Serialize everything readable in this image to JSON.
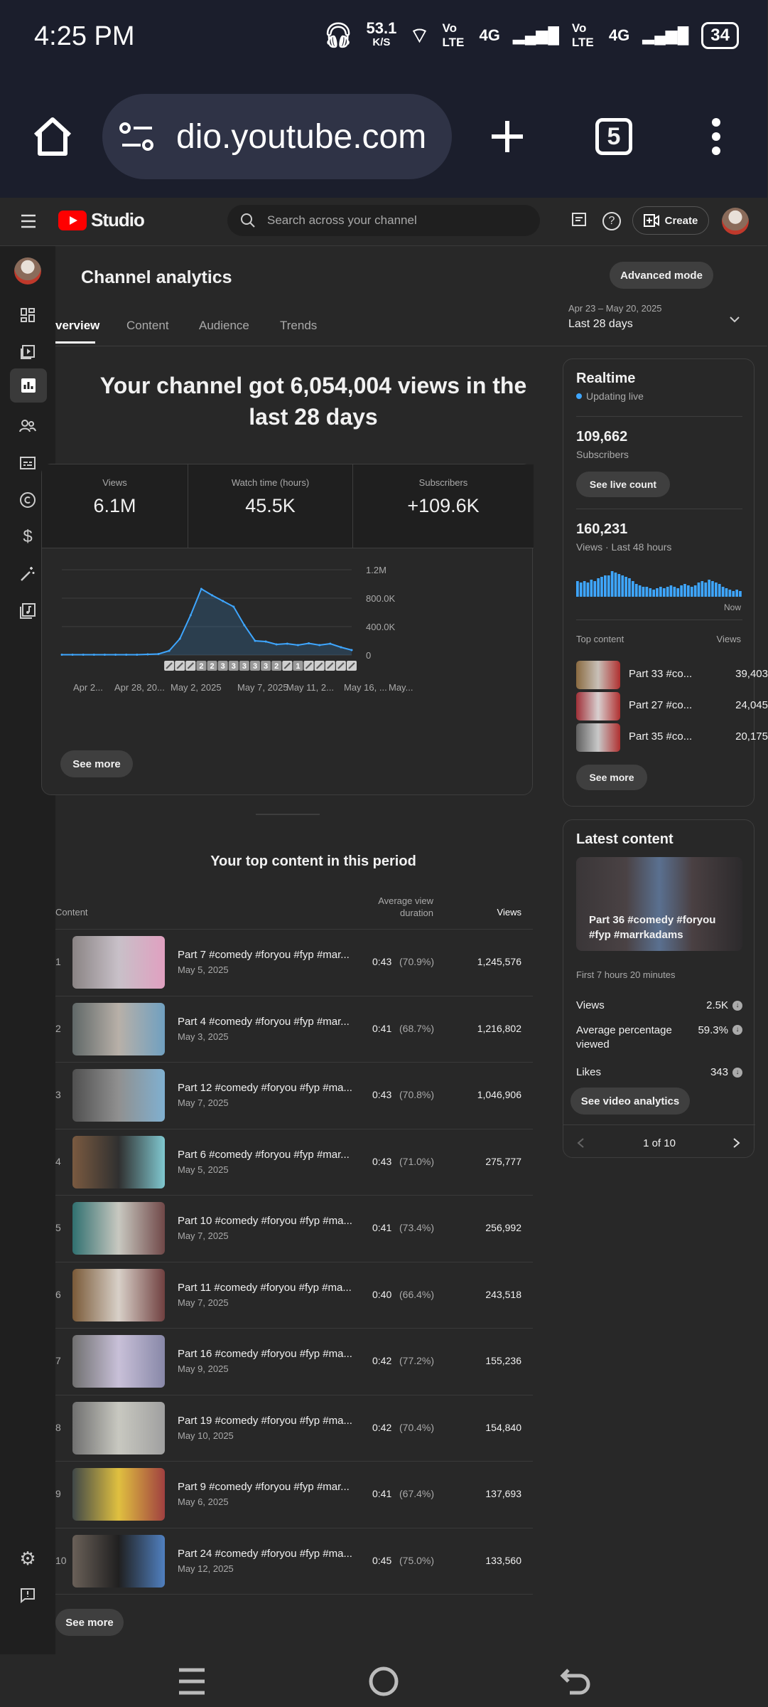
{
  "status_bar": {
    "time": "4:25 PM",
    "speed": "53.1",
    "speed_unit": "K/S",
    "net1": "Vo LTE",
    "net1_gen": "4G",
    "net2": "Vo LTE",
    "net2_gen": "4G",
    "battery": "34"
  },
  "browser": {
    "url": "dio.youtube.com",
    "tab_count": "5"
  },
  "header": {
    "logo": "Studio",
    "search_placeholder": "Search across your channel",
    "create_label": "Create"
  },
  "page": {
    "title": "Channel analytics",
    "advanced_mode": "Advanced mode",
    "date_range": "Apr 23 – May 20, 2025",
    "date_label": "Last 28 days",
    "tabs": [
      "verview",
      "Content",
      "Audience",
      "Trends"
    ]
  },
  "summary": {
    "headline": "Your channel got 6,054,004 views in the last 28 days",
    "metrics": [
      {
        "label": "Views",
        "value": "6.1M"
      },
      {
        "label": "Watch time (hours)",
        "value": "45.5K"
      },
      {
        "label": "Subscribers",
        "value": "+109.6K"
      }
    ],
    "see_more": "See more"
  },
  "chart_data": {
    "type": "area",
    "y_ticks": [
      "1.2M",
      "800.0K",
      "400.0K",
      "0"
    ],
    "ylim": [
      0,
      1200000
    ],
    "x_labels": [
      "Apr 2...",
      "Apr 28, 20...",
      "May 2, 2025",
      "May 7, 2025",
      "May 11, 2...",
      "May 16, ...",
      "May..."
    ],
    "x": [
      "Apr 23",
      "Apr 24",
      "Apr 25",
      "Apr 26",
      "Apr 27",
      "Apr 28",
      "Apr 29",
      "Apr 30",
      "May 1",
      "May 2",
      "May 3",
      "May 4",
      "May 5",
      "May 6",
      "May 7",
      "May 8",
      "May 9",
      "May 10",
      "May 11",
      "May 12",
      "May 13",
      "May 14",
      "May 15",
      "May 16",
      "May 17",
      "May 18",
      "May 19",
      "May 20"
    ],
    "values": [
      5000,
      5000,
      5000,
      5000,
      5000,
      5000,
      5000,
      5000,
      10000,
      15000,
      60000,
      230000,
      560000,
      930000,
      840000,
      760000,
      680000,
      420000,
      200000,
      190000,
      150000,
      160000,
      140000,
      165000,
      140000,
      160000,
      110000,
      70000
    ],
    "markers": [
      "",
      "",
      "",
      "",
      "",
      "",
      "",
      "",
      "",
      "",
      "",
      "",
      "",
      "2",
      "2",
      "3",
      "3",
      "3",
      "3",
      "3",
      "2",
      "",
      "1",
      "",
      "",
      "",
      "",
      ""
    ],
    "color": "#3ea6ff"
  },
  "realtime": {
    "title": "Realtime",
    "live": "Updating live",
    "subs_value": "109,662",
    "subs_label": "Subscribers",
    "live_count_btn": "See live count",
    "views_value": "160,231",
    "views_label": "Views · Last 48 hours",
    "bars": [
      0.55,
      0.5,
      0.55,
      0.5,
      0.6,
      0.55,
      0.65,
      0.7,
      0.75,
      0.75,
      0.9,
      0.85,
      0.8,
      0.75,
      0.7,
      0.65,
      0.55,
      0.45,
      0.4,
      0.35,
      0.35,
      0.3,
      0.25,
      0.3,
      0.35,
      0.3,
      0.35,
      0.4,
      0.35,
      0.3,
      0.4,
      0.45,
      0.4,
      0.35,
      0.4,
      0.5,
      0.55,
      0.5,
      0.6,
      0.55,
      0.5,
      0.45,
      0.35,
      0.3,
      0.25,
      0.2,
      0.25,
      0.2
    ],
    "now": "Now",
    "top_content_label": "Top content",
    "views_col": "Views",
    "top": [
      {
        "title": "Part 33 #co...",
        "views": "39,403"
      },
      {
        "title": "Part 27 #co...",
        "views": "24,045"
      },
      {
        "title": "Part 35 #co...",
        "views": "20,175"
      }
    ],
    "see_more": "See more"
  },
  "latest": {
    "title": "Latest content",
    "video_title": "Part 36 #comedy #foryou #fyp #marrkadams",
    "period": "First 7 hours 20 minutes",
    "stats": [
      {
        "label": "Views",
        "value": "2.5K"
      },
      {
        "label": "Average percentage viewed",
        "value": "59.3%"
      },
      {
        "label": "Likes",
        "value": "343"
      }
    ],
    "analytics_btn": "See video analytics",
    "pager": "1 of 10"
  },
  "top_content": {
    "heading": "Your top content in this period",
    "col_content": "Content",
    "col_avd": "Average view duration",
    "col_views": "Views",
    "rows": [
      {
        "rank": "1",
        "title": "Part 7 #comedy #foryou #fyp #mar...",
        "date": "May 5, 2025",
        "dur": "0:43",
        "pct": "(70.9%)",
        "views": "1,245,576"
      },
      {
        "rank": "2",
        "title": "Part 4 #comedy #foryou #fyp #mar...",
        "date": "May 3, 2025",
        "dur": "0:41",
        "pct": "(68.7%)",
        "views": "1,216,802"
      },
      {
        "rank": "3",
        "title": "Part 12 #comedy #foryou #fyp #ma...",
        "date": "May 7, 2025",
        "dur": "0:43",
        "pct": "(70.8%)",
        "views": "1,046,906"
      },
      {
        "rank": "4",
        "title": "Part 6 #comedy #foryou #fyp #mar...",
        "date": "May 5, 2025",
        "dur": "0:43",
        "pct": "(71.0%)",
        "views": "275,777"
      },
      {
        "rank": "5",
        "title": "Part 10 #comedy #foryou #fyp #ma...",
        "date": "May 7, 2025",
        "dur": "0:41",
        "pct": "(73.4%)",
        "views": "256,992"
      },
      {
        "rank": "6",
        "title": "Part 11 #comedy #foryou #fyp #ma...",
        "date": "May 7, 2025",
        "dur": "0:40",
        "pct": "(66.4%)",
        "views": "243,518"
      },
      {
        "rank": "7",
        "title": "Part 16 #comedy #foryou #fyp #ma...",
        "date": "May 9, 2025",
        "dur": "0:42",
        "pct": "(77.2%)",
        "views": "155,236"
      },
      {
        "rank": "8",
        "title": "Part 19 #comedy #foryou #fyp #ma...",
        "date": "May 10, 2025",
        "dur": "0:42",
        "pct": "(70.4%)",
        "views": "154,840"
      },
      {
        "rank": "9",
        "title": "Part 9 #comedy #foryou #fyp #mar...",
        "date": "May 6, 2025",
        "dur": "0:41",
        "pct": "(67.4%)",
        "views": "137,693"
      },
      {
        "rank": "10",
        "title": "Part 24 #comedy #foryou #fyp #ma...",
        "date": "May 12, 2025",
        "dur": "0:45",
        "pct": "(75.0%)",
        "views": "133,560"
      }
    ],
    "see_more": "See more"
  },
  "colors": {
    "accent": "#3ea6ff",
    "brand": "#ff0000"
  }
}
